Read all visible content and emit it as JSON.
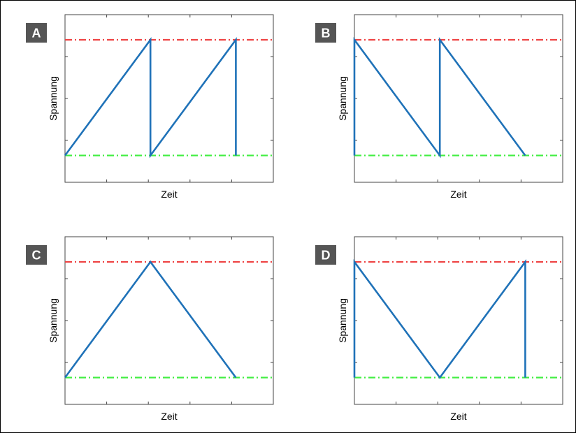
{
  "chart_data": [
    {
      "type": "line",
      "panel_label": "A",
      "xlabel": "Zeit",
      "ylabel": "Spannung",
      "xlim": [
        0,
        1
      ],
      "ylim": [
        0,
        1
      ],
      "grid": false,
      "reference_lines": [
        {
          "y": 0.85,
          "color": "#ee4444",
          "style": "dash-dot"
        },
        {
          "y": 0.16,
          "color": "#44ee44",
          "style": "dash-dot"
        }
      ],
      "series": [
        {
          "color": "#1f72b8",
          "x": [
            0.0,
            0.41,
            0.41,
            0.82,
            0.82
          ],
          "y": [
            0.16,
            0.85,
            0.16,
            0.85,
            0.16
          ]
        }
      ]
    },
    {
      "type": "line",
      "panel_label": "B",
      "xlabel": "Zeit",
      "ylabel": "Spannung",
      "xlim": [
        0,
        1
      ],
      "ylim": [
        0,
        1
      ],
      "grid": false,
      "reference_lines": [
        {
          "y": 0.85,
          "color": "#ee4444",
          "style": "dash-dot"
        },
        {
          "y": 0.16,
          "color": "#44ee44",
          "style": "dash-dot"
        }
      ],
      "series": [
        {
          "color": "#1f72b8",
          "x": [
            0.0,
            0.0,
            0.41,
            0.41,
            0.82
          ],
          "y": [
            0.16,
            0.85,
            0.16,
            0.85,
            0.16
          ]
        }
      ]
    },
    {
      "type": "line",
      "panel_label": "C",
      "xlabel": "Zeit",
      "ylabel": "Spannung",
      "xlim": [
        0,
        1
      ],
      "ylim": [
        0,
        1
      ],
      "grid": false,
      "reference_lines": [
        {
          "y": 0.85,
          "color": "#ee4444",
          "style": "dash-dot"
        },
        {
          "y": 0.16,
          "color": "#44ee44",
          "style": "dash-dot"
        }
      ],
      "series": [
        {
          "color": "#1f72b8",
          "x": [
            0.0,
            0.41,
            0.82
          ],
          "y": [
            0.16,
            0.85,
            0.16
          ]
        }
      ]
    },
    {
      "type": "line",
      "panel_label": "D",
      "xlabel": "Zeit",
      "ylabel": "Spannung",
      "xlim": [
        0,
        1
      ],
      "ylim": [
        0,
        1
      ],
      "grid": false,
      "reference_lines": [
        {
          "y": 0.85,
          "color": "#ee4444",
          "style": "dash-dot"
        },
        {
          "y": 0.16,
          "color": "#44ee44",
          "style": "dash-dot"
        }
      ],
      "series": [
        {
          "color": "#1f72b8",
          "x": [
            0.0,
            0.0,
            0.41,
            0.82,
            0.82
          ],
          "y": [
            0.16,
            0.85,
            0.16,
            0.85,
            0.16
          ]
        }
      ]
    }
  ]
}
